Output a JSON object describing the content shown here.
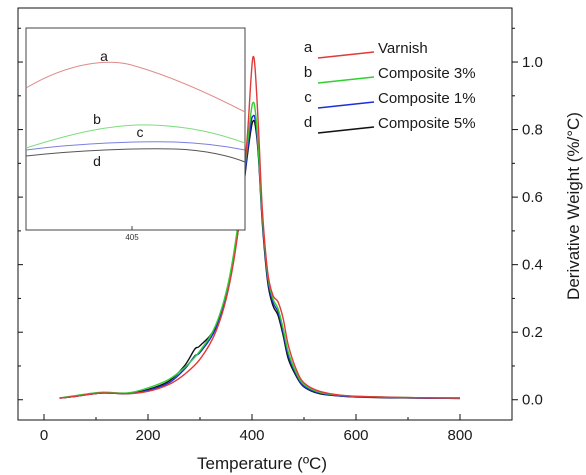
{
  "chart_data": {
    "type": "line",
    "title": "",
    "xlabel": "Temperature (ºC)",
    "ylabel": "Derivative Weight (%/°C)",
    "xlim": [
      -50,
      900
    ],
    "ylim": [
      -0.06,
      1.16
    ],
    "x_ticks": [
      "0",
      "200",
      "400",
      "600",
      "800"
    ],
    "x_tick_values": [
      0,
      200,
      400,
      600,
      800
    ],
    "y_ticks": [
      "0.0",
      "0.2",
      "0.4",
      "0.6",
      "0.8",
      "1.0"
    ],
    "y_tick_values": [
      0.0,
      0.2,
      0.4,
      0.6,
      0.8,
      1.0
    ],
    "grid": false,
    "legend_position": "top-right",
    "series": [
      {
        "name": "Varnish",
        "letter": "a",
        "color": "#e03a3a",
        "points": [
          [
            30,
            0.005
          ],
          [
            60,
            0.01
          ],
          [
            110,
            0.02
          ],
          [
            160,
            0.018
          ],
          [
            200,
            0.025
          ],
          [
            240,
            0.045
          ],
          [
            270,
            0.075
          ],
          [
            300,
            0.12
          ],
          [
            330,
            0.2
          ],
          [
            355,
            0.33
          ],
          [
            375,
            0.52
          ],
          [
            390,
            0.76
          ],
          [
            398,
            0.95
          ],
          [
            402,
            1.015
          ],
          [
            406,
            0.98
          ],
          [
            412,
            0.82
          ],
          [
            420,
            0.56
          ],
          [
            430,
            0.38
          ],
          [
            440,
            0.31
          ],
          [
            450,
            0.29
          ],
          [
            460,
            0.24
          ],
          [
            470,
            0.16
          ],
          [
            485,
            0.09
          ],
          [
            500,
            0.05
          ],
          [
            530,
            0.025
          ],
          [
            580,
            0.012
          ],
          [
            650,
            0.008
          ],
          [
            720,
            0.006
          ],
          [
            800,
            0.005
          ]
        ]
      },
      {
        "name": "Composite 3%",
        "letter": "b",
        "color": "#2fd12f",
        "points": [
          [
            30,
            0.005
          ],
          [
            60,
            0.012
          ],
          [
            110,
            0.022
          ],
          [
            160,
            0.02
          ],
          [
            200,
            0.035
          ],
          [
            240,
            0.06
          ],
          [
            270,
            0.095
          ],
          [
            300,
            0.145
          ],
          [
            330,
            0.22
          ],
          [
            355,
            0.35
          ],
          [
            375,
            0.54
          ],
          [
            390,
            0.74
          ],
          [
            398,
            0.85
          ],
          [
            402,
            0.88
          ],
          [
            406,
            0.86
          ],
          [
            412,
            0.75
          ],
          [
            420,
            0.54
          ],
          [
            430,
            0.37
          ],
          [
            440,
            0.3
          ],
          [
            450,
            0.27
          ],
          [
            460,
            0.21
          ],
          [
            470,
            0.14
          ],
          [
            485,
            0.08
          ],
          [
            500,
            0.045
          ],
          [
            530,
            0.022
          ],
          [
            580,
            0.012
          ],
          [
            650,
            0.008
          ],
          [
            720,
            0.006
          ],
          [
            800,
            0.005
          ]
        ]
      },
      {
        "name": "Composite 1%",
        "letter": "c",
        "color": "#1f2fd8",
        "points": [
          [
            30,
            0.005
          ],
          [
            60,
            0.01
          ],
          [
            110,
            0.02
          ],
          [
            160,
            0.018
          ],
          [
            200,
            0.028
          ],
          [
            240,
            0.05
          ],
          [
            270,
            0.09
          ],
          [
            290,
            0.13
          ],
          [
            300,
            0.14
          ],
          [
            330,
            0.21
          ],
          [
            355,
            0.34
          ],
          [
            375,
            0.52
          ],
          [
            390,
            0.72
          ],
          [
            398,
            0.82
          ],
          [
            402,
            0.84
          ],
          [
            406,
            0.83
          ],
          [
            412,
            0.74
          ],
          [
            420,
            0.53
          ],
          [
            430,
            0.36
          ],
          [
            440,
            0.29
          ],
          [
            450,
            0.26
          ],
          [
            460,
            0.2
          ],
          [
            470,
            0.13
          ],
          [
            485,
            0.075
          ],
          [
            500,
            0.04
          ],
          [
            530,
            0.02
          ],
          [
            580,
            0.01
          ],
          [
            650,
            0.007
          ],
          [
            720,
            0.005
          ],
          [
            800,
            0.004
          ]
        ]
      },
      {
        "name": "Composite 5%",
        "letter": "d",
        "color": "#111111",
        "points": [
          [
            30,
            0.005
          ],
          [
            60,
            0.01
          ],
          [
            110,
            0.02
          ],
          [
            160,
            0.018
          ],
          [
            200,
            0.03
          ],
          [
            240,
            0.055
          ],
          [
            270,
            0.1
          ],
          [
            290,
            0.15
          ],
          [
            300,
            0.16
          ],
          [
            330,
            0.215
          ],
          [
            355,
            0.34
          ],
          [
            375,
            0.52
          ],
          [
            390,
            0.71
          ],
          [
            398,
            0.8
          ],
          [
            402,
            0.825
          ],
          [
            406,
            0.815
          ],
          [
            412,
            0.73
          ],
          [
            420,
            0.52
          ],
          [
            430,
            0.35
          ],
          [
            440,
            0.28
          ],
          [
            450,
            0.25
          ],
          [
            460,
            0.19
          ],
          [
            470,
            0.12
          ],
          [
            485,
            0.07
          ],
          [
            500,
            0.038
          ],
          [
            530,
            0.018
          ],
          [
            580,
            0.01
          ],
          [
            650,
            0.006
          ],
          [
            720,
            0.005
          ],
          [
            800,
            0.004
          ]
        ]
      }
    ],
    "inset": {
      "x_tick_label": "405",
      "labels": [
        "a",
        "b",
        "c",
        "d"
      ]
    }
  }
}
